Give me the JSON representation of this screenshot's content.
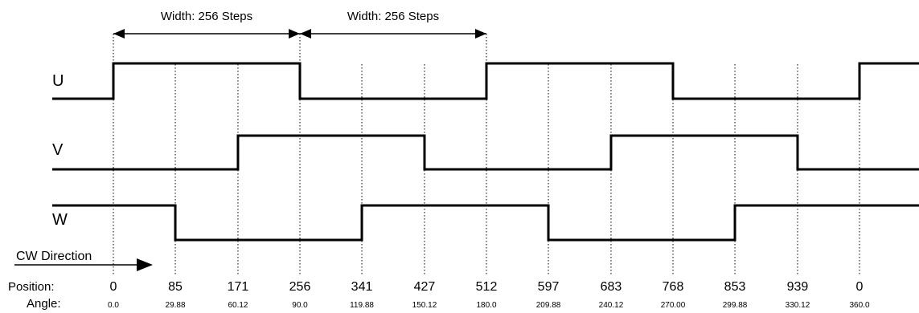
{
  "width_annotations": [
    "Width: 256 Steps",
    "Width: 256 Steps"
  ],
  "signals": [
    {
      "name": "U",
      "start_level": 0,
      "edges": [
        0,
        256,
        512,
        768,
        1024
      ]
    },
    {
      "name": "V",
      "start_level": 0,
      "edges": [
        171,
        427,
        683,
        939
      ]
    },
    {
      "name": "W",
      "start_level": 1,
      "edges": [
        85,
        341,
        597,
        853
      ]
    }
  ],
  "direction_label": "CW Direction",
  "position_row_label": "Position:",
  "angle_row_label": "Angle:",
  "ticks": [
    {
      "step": 0,
      "position": "0",
      "angle": "0.0"
    },
    {
      "step": 85,
      "position": "85",
      "angle": "29.88"
    },
    {
      "step": 171,
      "position": "171",
      "angle": "60.12"
    },
    {
      "step": 256,
      "position": "256",
      "angle": "90.0"
    },
    {
      "step": 341,
      "position": "341",
      "angle": "119.88"
    },
    {
      "step": 427,
      "position": "427",
      "angle": "150.12"
    },
    {
      "step": 512,
      "position": "512",
      "angle": "180.0"
    },
    {
      "step": 597,
      "position": "597",
      "angle": "209.88"
    },
    {
      "step": 683,
      "position": "683",
      "angle": "240.12"
    },
    {
      "step": 768,
      "position": "768",
      "angle": "270.00"
    },
    {
      "step": 853,
      "position": "853",
      "angle": "299.88"
    },
    {
      "step": 939,
      "position": "939",
      "angle": "330.12"
    },
    {
      "step": 1024,
      "position": "0",
      "angle": "360.0"
    }
  ]
}
